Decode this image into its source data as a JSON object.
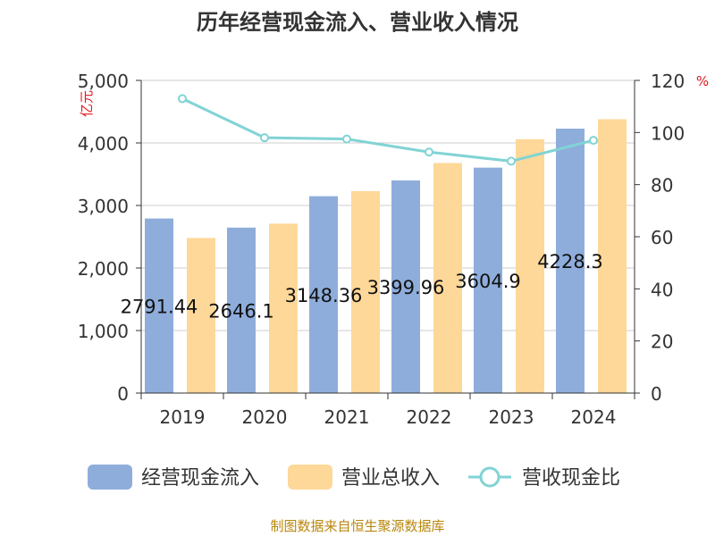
{
  "chart_data": {
    "type": "bar",
    "title": "历年经营现金流入、营业收入情况",
    "categories": [
      "2019",
      "2020",
      "2021",
      "2022",
      "2023",
      "2024"
    ],
    "series": [
      {
        "name": "经营现金流入",
        "kind": "bar",
        "axis": "left",
        "color": "#8eaddb",
        "values": [
          2791.44,
          2646.1,
          3148.36,
          3399.96,
          3604.9,
          4228.3
        ],
        "data_labels": [
          "2791.44",
          "2646.1",
          "3148.36",
          "3399.96",
          "3604.9",
          "4228.3"
        ]
      },
      {
        "name": "营业总收入",
        "kind": "bar",
        "axis": "left",
        "color": "#fed899",
        "values": [
          2480,
          2710,
          3230,
          3680,
          4060,
          4380
        ]
      },
      {
        "name": "营收现金比",
        "kind": "line",
        "axis": "right",
        "color": "#81d3d5",
        "values": [
          113,
          98,
          97.5,
          92.5,
          89,
          97
        ]
      }
    ],
    "y_left": {
      "unit_label": "亿元",
      "ylim": [
        0,
        5000
      ],
      "tick_labels": [
        "0",
        "1,000",
        "2,000",
        "3,000",
        "4,000",
        "5,000"
      ]
    },
    "y_right": {
      "unit_label": "%",
      "ylim": [
        0,
        120
      ],
      "tick_labels": [
        "0",
        "20",
        "40",
        "60",
        "80",
        "100",
        "120"
      ]
    },
    "grid": true,
    "legend_position": "bottom"
  },
  "footer": {
    "source": "制图数据来自恒生聚源数据库"
  }
}
